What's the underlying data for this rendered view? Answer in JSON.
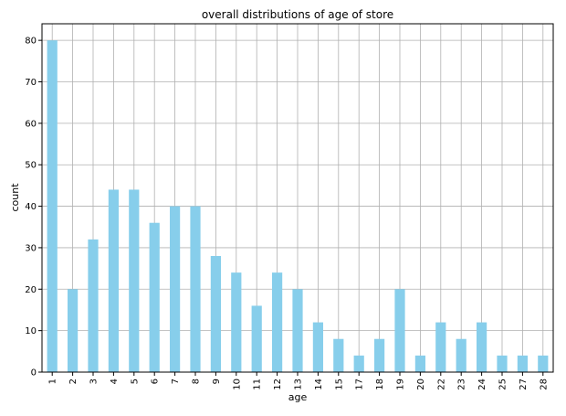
{
  "chart_data": {
    "type": "bar",
    "title": "overall distributions of age of store",
    "xlabel": "age",
    "ylabel": "count",
    "categories": [
      "1",
      "2",
      "3",
      "4",
      "5",
      "6",
      "7",
      "8",
      "9",
      "10",
      "11",
      "12",
      "13",
      "14",
      "15",
      "17",
      "18",
      "19",
      "20",
      "22",
      "23",
      "24",
      "25",
      "27",
      "28"
    ],
    "values": [
      80,
      20,
      32,
      44,
      44,
      36,
      40,
      40,
      28,
      24,
      16,
      24,
      20,
      12,
      8,
      4,
      8,
      20,
      4,
      12,
      8,
      12,
      4,
      4,
      4
    ],
    "ylim": [
      0,
      84
    ],
    "yticks": [
      0,
      10,
      20,
      30,
      40,
      50,
      60,
      70,
      80
    ],
    "grid": true,
    "legend": "none",
    "colors": {
      "bar": "#87CEEB",
      "grid": "#b0b0b0",
      "axis": "#000000"
    }
  }
}
